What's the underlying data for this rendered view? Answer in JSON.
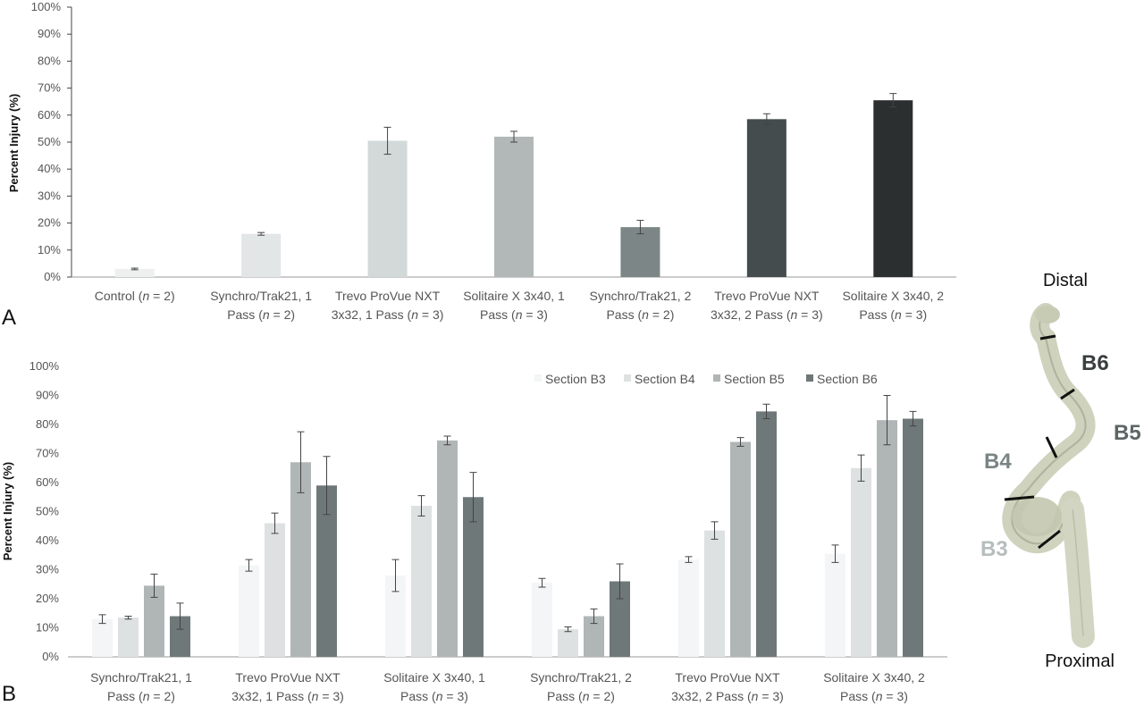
{
  "panels": {
    "a": "A",
    "b": "B"
  },
  "chart_data": [
    {
      "type": "bar",
      "panel": "A",
      "ylabel": "Percent Injury (%)",
      "ylim": [
        0,
        100
      ],
      "yticks": [
        "0%",
        "10%",
        "20%",
        "30%",
        "40%",
        "50%",
        "60%",
        "70%",
        "80%",
        "90%",
        "100%"
      ],
      "categories": [
        [
          "Control (",
          "n",
          " = 2)"
        ],
        [
          "Synchro/Trak21, 1",
          "Pass (n = 2)"
        ],
        [
          "Trevo ProVue NXT",
          "3x32, 1 Pass (n = 3)"
        ],
        [
          "Solitaire X 3x40, 1",
          "Pass (n = 3)"
        ],
        [
          "Synchro/Trak21, 2",
          "Pass (n = 2)"
        ],
        [
          "Trevo ProVue NXT",
          "3x32, 2 Pass (n = 3)"
        ],
        [
          "Solitaire X 3x40, 2",
          "Pass (n = 3)"
        ]
      ],
      "values": [
        3,
        16,
        50.5,
        52,
        18.5,
        58.5,
        65.5
      ],
      "errors": [
        0.3,
        0.5,
        5,
        2,
        2.5,
        2,
        2.5
      ],
      "colors": [
        "#eef0f0",
        "#e2e6e6",
        "#d3d8d8",
        "#b2b8b8",
        "#7c8686",
        "#454c4d",
        "#2c2f30"
      ]
    },
    {
      "type": "bar",
      "panel": "B",
      "ylabel": "Percent Injury (%)",
      "ylim": [
        0,
        100
      ],
      "yticks": [
        "0%",
        "10%",
        "20%",
        "30%",
        "40%",
        "50%",
        "60%",
        "70%",
        "80%",
        "90%",
        "100%"
      ],
      "categories": [
        [
          "Synchro/Trak21, 1",
          "Pass (n = 2)"
        ],
        [
          "Trevo ProVue NXT",
          "3x32, 1 Pass (n = 3)"
        ],
        [
          "Solitaire X 3x40, 1",
          "Pass (n = 3)"
        ],
        [
          "Synchro/Trak21, 2",
          "Pass (n = 2)"
        ],
        [
          "Trevo ProVue NXT",
          "3x32, 2 Pass (n = 3)"
        ],
        [
          "Solitaire X 3x40, 2",
          "Pass (n = 3)"
        ]
      ],
      "legend_position": "top-right",
      "series": [
        {
          "name": "Section B3",
          "color": "#f3f5f6",
          "values": [
            13,
            31.5,
            28,
            25.5,
            33.5,
            35.5
          ],
          "errors": [
            1.5,
            2,
            5.5,
            1.5,
            1,
            3
          ]
        },
        {
          "name": "Section B4",
          "color": "#dde1e1",
          "values": [
            13.5,
            46,
            52,
            9.5,
            43.5,
            65
          ],
          "errors": [
            0.5,
            3.5,
            3.5,
            0.8,
            3,
            4.5
          ]
        },
        {
          "name": "Section B5",
          "color": "#b0b6b6",
          "values": [
            24.5,
            67,
            74.5,
            14,
            74,
            81.5
          ],
          "errors": [
            4,
            10.5,
            1.5,
            2.5,
            1.5,
            8.5
          ]
        },
        {
          "name": "Section B6",
          "color": "#6f7878",
          "values": [
            14,
            59,
            55,
            26,
            84.5,
            82
          ],
          "errors": [
            4.5,
            10,
            8.5,
            6,
            2.5,
            2.5
          ]
        }
      ]
    }
  ],
  "specimen": {
    "top_label": "Distal",
    "bottom_label": "Proximal",
    "sections": [
      {
        "label": "B6",
        "color": "#3a3f40"
      },
      {
        "label": "B5",
        "color": "#5d6666"
      },
      {
        "label": "B4",
        "color": "#7a8484"
      },
      {
        "label": "B3",
        "color": "#b7bdbd"
      }
    ]
  }
}
